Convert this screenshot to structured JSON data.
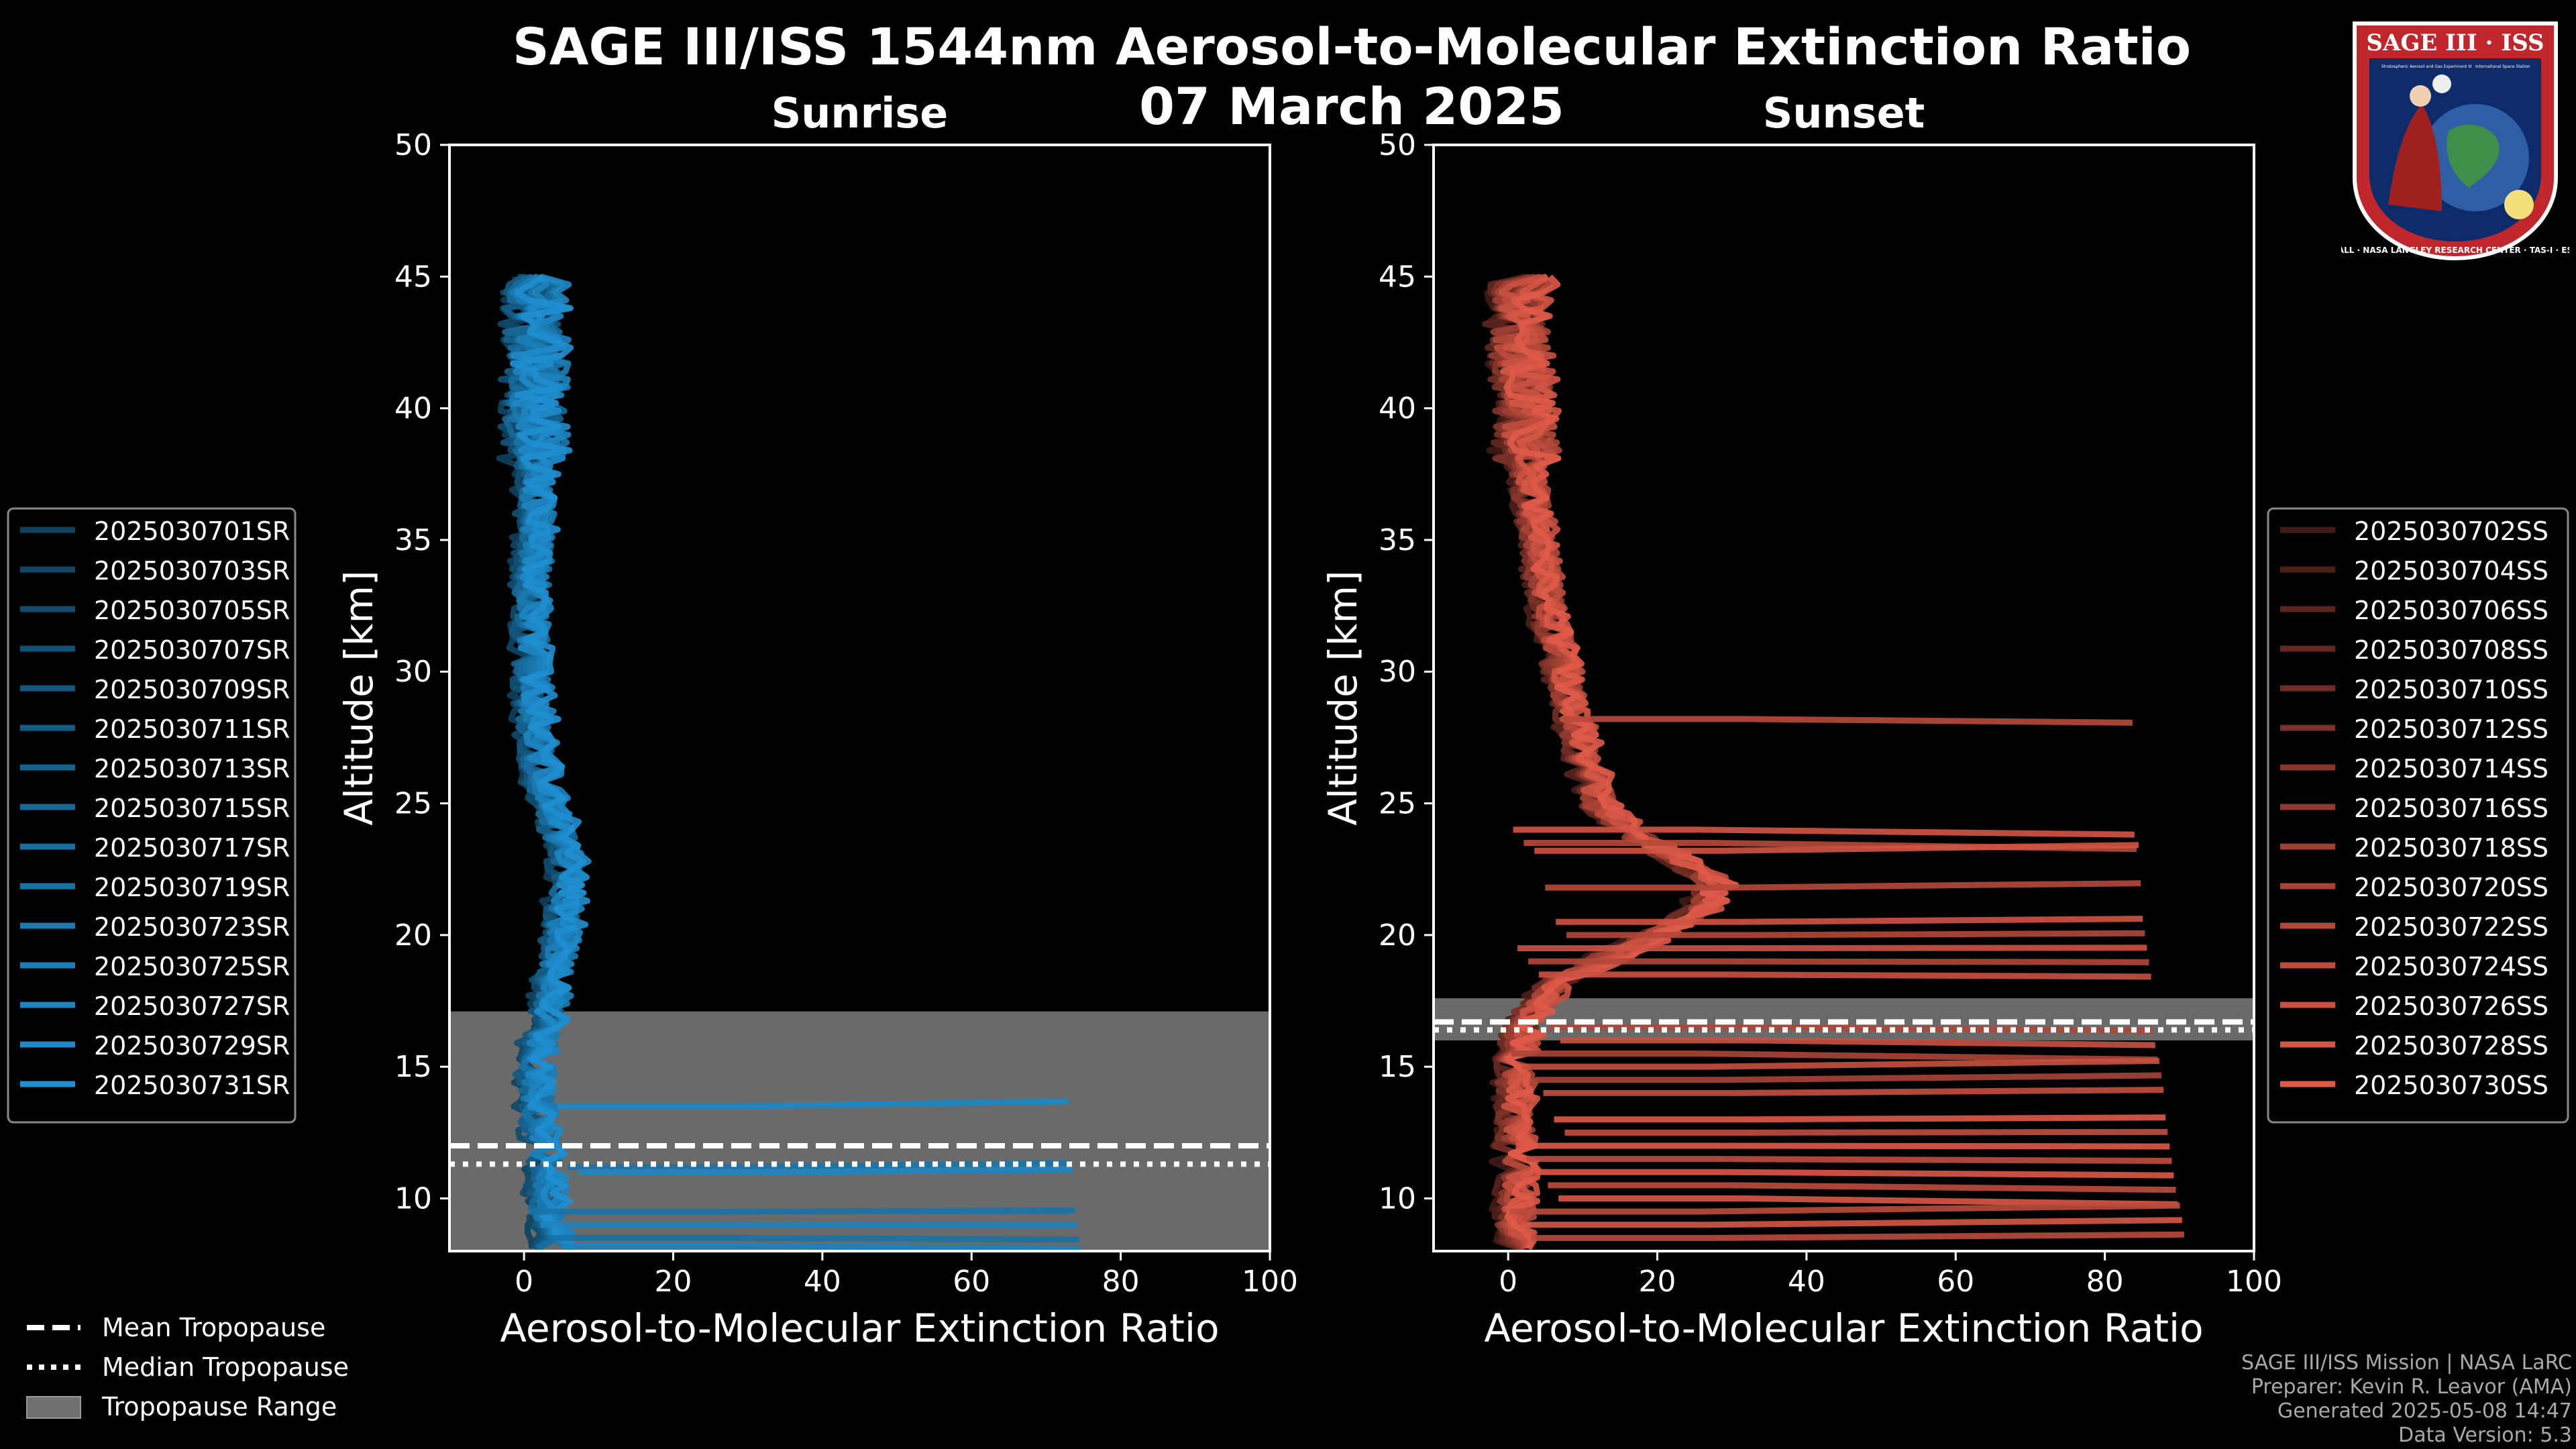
{
  "title": "SAGE III/ISS 1544nm Aerosol-to-Molecular Extinction Ratio",
  "date": "07 March 2025",
  "credits": {
    "line1": "SAGE III/ISS Mission | NASA LaRC",
    "line2": "Preparer: Kevin R. Leavor (AMA)",
    "line3": "Generated 2025-05-08 14:47",
    "line4": "Data Version: 5.3"
  },
  "logo": {
    "top_text": "SAGE III · ISS",
    "ring_text": "BALL · NASA LANGLEY RESEARCH CENTER · TAS-I · ESA",
    "small_left": "Stratospheric Aerosol and Gas Experiment III",
    "small_right": "International Space Station"
  },
  "colors": {
    "sunrise": "#1f8fd0",
    "sunset": "#e05a48",
    "tropopause_range": "#707070",
    "background": "#000000"
  },
  "bottom_legend": [
    {
      "label": "Mean Tropopause",
      "style": "dashed"
    },
    {
      "label": "Median Tropopause",
      "style": "dotted"
    },
    {
      "label": "Tropopause Range",
      "style": "patch"
    }
  ],
  "chart_data": [
    {
      "type": "line",
      "title": "Sunrise",
      "xlabel": "Aerosol-to-Molecular Extinction Ratio",
      "ylabel": "Altitude [km]",
      "xlim": [
        -10,
        100
      ],
      "ylim": [
        8,
        50
      ],
      "xticks": [
        0,
        20,
        40,
        60,
        80,
        100
      ],
      "yticks": [
        10,
        15,
        20,
        25,
        30,
        35,
        40,
        45
      ],
      "tropopause": {
        "mean": 12.0,
        "median": 11.3,
        "range": [
          8.0,
          17.1
        ]
      },
      "legend_location": "left",
      "series_names": [
        "2025030701SR",
        "2025030703SR",
        "2025030705SR",
        "2025030707SR",
        "2025030709SR",
        "2025030711SR",
        "2025030713SR",
        "2025030715SR",
        "2025030717SR",
        "2025030719SR",
        "2025030723SR",
        "2025030725SR",
        "2025030727SR",
        "2025030729SR",
        "2025030731SR"
      ],
      "profile_shape": {
        "altitudes": [
          45,
          43,
          40,
          37,
          35,
          33,
          30,
          28,
          26,
          24,
          23,
          22,
          21,
          20,
          19,
          18,
          17,
          16,
          15,
          14,
          13,
          12,
          11,
          10,
          9,
          8.5
        ],
        "ratio": [
          2,
          1.5,
          1.5,
          1.5,
          1.5,
          1.0,
          1.0,
          1.5,
          2.5,
          4.5,
          6.0,
          6.0,
          5.5,
          5.0,
          4.5,
          4.0,
          3.0,
          2.0,
          1.5,
          1.5,
          2.0,
          2.5,
          3.0,
          3.0,
          3.5,
          4.0
        ]
      },
      "horizontal_excursions_km": [
        13.5,
        11.2,
        11.0,
        9.5,
        9.0,
        8.5,
        8.2
      ]
    },
    {
      "type": "line",
      "title": "Sunset",
      "xlabel": "Aerosol-to-Molecular Extinction Ratio",
      "ylabel": "Altitude [km]",
      "xlim": [
        -10,
        100
      ],
      "ylim": [
        8,
        50
      ],
      "xticks": [
        0,
        20,
        40,
        60,
        80,
        100
      ],
      "yticks": [
        10,
        15,
        20,
        25,
        30,
        35,
        40,
        45
      ],
      "tropopause": {
        "mean": 16.7,
        "median": 16.4,
        "range": [
          16.0,
          17.6
        ]
      },
      "legend_location": "right",
      "series_names": [
        "2025030702SS",
        "2025030704SS",
        "2025030706SS",
        "2025030708SS",
        "2025030710SS",
        "2025030712SS",
        "2025030714SS",
        "2025030716SS",
        "2025030718SS",
        "2025030720SS",
        "2025030722SS",
        "2025030724SS",
        "2025030726SS",
        "2025030728SS",
        "2025030730SS"
      ],
      "profile_shape": {
        "altitudes": [
          45,
          43,
          40,
          37,
          35,
          33,
          31,
          29,
          27,
          25,
          24,
          23,
          22,
          21,
          20,
          19,
          18,
          17,
          16,
          15,
          14,
          13,
          12,
          11,
          10,
          9,
          8.5
        ],
        "ratio": [
          2,
          1.5,
          2,
          3,
          4,
          5,
          6.5,
          8,
          10,
          12,
          16,
          22,
          28,
          26,
          20,
          12,
          6,
          3,
          1.5,
          1.0,
          1.0,
          1.0,
          1.0,
          1.0,
          1.0,
          1.0,
          1.0
        ]
      },
      "horizontal_excursions_km": [
        28.2,
        24.0,
        23.5,
        23.2,
        21.8,
        20.5,
        20.0,
        19.5,
        19.0,
        18.5,
        16.5,
        16.0,
        15.5,
        15.0,
        14.5,
        14.0,
        13.0,
        12.5,
        12.0,
        11.5,
        11.0,
        10.5,
        10.0,
        9.5,
        9.0,
        8.5
      ]
    }
  ]
}
